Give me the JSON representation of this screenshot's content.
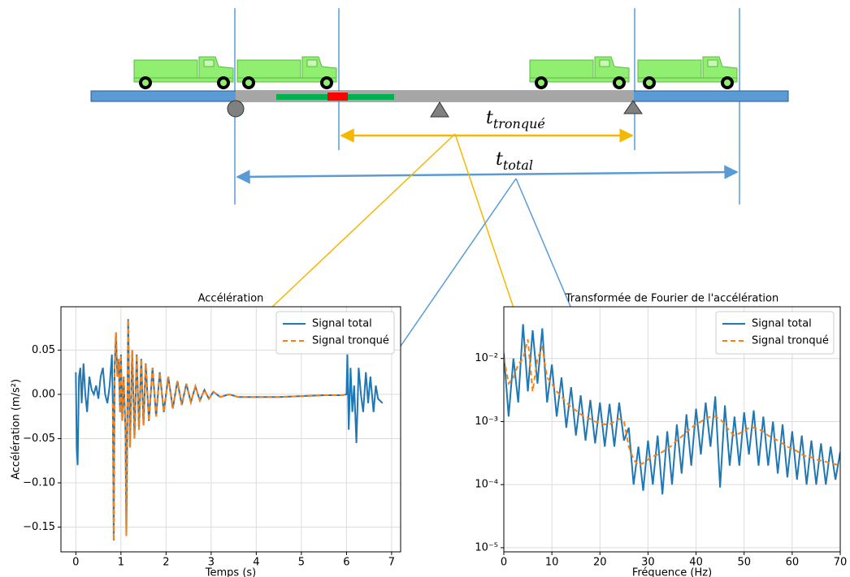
{
  "diagram": {
    "labels": [
      {
        "base": "t",
        "subscript": "tronqué"
      },
      {
        "base": "t",
        "subscript": "total"
      }
    ]
  },
  "chart_data": [
    {
      "type": "line",
      "title": "Accélération",
      "x_label": "Temps (s)",
      "y_label": "Accélération (m/s²)",
      "xlim": [
        -0.33,
        7.2
      ],
      "xticks": [
        0,
        1,
        2,
        3,
        4,
        5,
        6,
        7
      ],
      "ylim": [
        -0.178,
        0.099
      ],
      "yticks": [
        {
          "value": -0.15,
          "label": "−0.15"
        },
        {
          "value": -0.1,
          "label": "−0.10"
        },
        {
          "value": -0.05,
          "label": "−0.05"
        },
        {
          "value": 0,
          "label": "0.00"
        },
        0.05
      ],
      "grid": true,
      "legend": "upper right",
      "log_y": false,
      "x": [
        0,
        0.02,
        0.04,
        0.07,
        0.1,
        0.13,
        0.17,
        0.21,
        0.25,
        0.3,
        0.35,
        0.4,
        0.45,
        0.5,
        0.55,
        0.6,
        0.65,
        0.7,
        0.75,
        0.8,
        0.82,
        0.84,
        0.86,
        0.89,
        0.92,
        0.95,
        0.98,
        1,
        1.03,
        1.06,
        1.1,
        1.12,
        1.16,
        1.2,
        1.25,
        1.3,
        1.35,
        1.4,
        1.45,
        1.5,
        1.55,
        1.62,
        1.7,
        1.78,
        1.86,
        1.95,
        2.05,
        2.15,
        2.25,
        2.35,
        2.45,
        2.55,
        2.65,
        2.75,
        2.85,
        2.95,
        3.05,
        3.2,
        3.4,
        3.6,
        3.8,
        4,
        4.5,
        5,
        5.5,
        5.9,
        6,
        6.02,
        6.05,
        6.09,
        6.13,
        6.17,
        6.22,
        6.27,
        6.32,
        6.37,
        6.43,
        6.48,
        6.53,
        6.6,
        6.65,
        6.7,
        6.8
      ],
      "series": [
        {
          "name": "Signal total",
          "color": "#1f77b4",
          "linestyle": "solid",
          "values": [
            0.025,
            -0.06,
            -0.08,
            0.02,
            0.03,
            -0.01,
            0.035,
            0,
            -0.02,
            0.02,
            0.005,
            0,
            0.01,
            -0.005,
            0.02,
            0.03,
            0,
            -0.01,
            0.01,
            0.045,
            -0.01,
            -0.165,
            0.03,
            0.07,
            0.02,
            0.04,
            -0.02,
            0.045,
            -0.03,
            0.02,
            -0.04,
            -0.16,
            0.085,
            -0.06,
            0.05,
            -0.05,
            0.045,
            -0.04,
            0.04,
            -0.035,
            0.035,
            -0.03,
            0.03,
            -0.025,
            0.025,
            -0.02,
            0.02,
            -0.016,
            0.015,
            -0.012,
            0.012,
            -0.009,
            0.009,
            -0.007,
            0.005,
            -0.005,
            0.003,
            -0.003,
            0,
            -0.003,
            -0.003,
            -0.003,
            -0.003,
            -0.002,
            -0.001,
            -0.001,
            0,
            0.045,
            -0.04,
            0.03,
            -0.02,
            0.01,
            -0.055,
            0.03,
            0,
            -0.02,
            0.025,
            -0.01,
            0.02,
            -0.02,
            0.01,
            -0.005,
            -0.01
          ]
        },
        {
          "name": "Signal tronqué",
          "color": "#ff7f0e",
          "linestyle": "dashed",
          "values": [
            null,
            null,
            null,
            null,
            null,
            null,
            null,
            null,
            null,
            null,
            null,
            null,
            null,
            null,
            null,
            null,
            null,
            null,
            null,
            null,
            -0.01,
            -0.165,
            0.03,
            0.07,
            0.02,
            0.04,
            -0.02,
            0.045,
            -0.03,
            0.02,
            -0.04,
            -0.16,
            0.085,
            -0.06,
            0.05,
            -0.05,
            0.045,
            -0.04,
            0.04,
            -0.035,
            0.035,
            -0.03,
            0.03,
            -0.025,
            0.025,
            -0.02,
            0.02,
            -0.016,
            0.015,
            -0.012,
            0.012,
            -0.009,
            0.009,
            -0.007,
            0.005,
            -0.005,
            0.003,
            -0.003,
            0,
            -0.003,
            -0.003,
            -0.003,
            -0.003,
            -0.002,
            -0.001,
            -0.001,
            0,
            null,
            null,
            null,
            null,
            null,
            null,
            null,
            null,
            null,
            null,
            null,
            null,
            null,
            null,
            null,
            null
          ]
        }
      ]
    },
    {
      "type": "line",
      "title": "Transformée de Fourier de l'accélération",
      "x_label": "Fréquence (Hz)",
      "xlim": [
        0,
        70
      ],
      "xticks": [
        0,
        10,
        20,
        30,
        40,
        50,
        60,
        70
      ],
      "ylim": [
        8.6e-06,
        0.066
      ],
      "yticks": [
        {
          "value": 1e-05,
          "label": "10⁻⁵"
        },
        {
          "value": 0.0001,
          "label": "10⁻⁴"
        },
        {
          "value": 0.001,
          "label": "10⁻³"
        },
        {
          "value": 0.01,
          "label": "10⁻²"
        }
      ],
      "grid": true,
      "legend": "upper right",
      "log_y": true,
      "x": [
        0,
        1,
        2,
        3,
        4,
        5,
        6,
        7,
        8,
        9,
        10,
        11,
        12,
        13,
        14,
        15,
        16,
        17,
        18,
        19,
        20,
        21,
        22,
        23,
        24,
        25,
        26,
        27,
        28,
        29,
        30,
        31,
        32,
        33,
        34,
        35,
        36,
        37,
        38,
        39,
        40,
        41,
        42,
        43,
        44,
        45,
        46,
        47,
        48,
        49,
        50,
        51,
        52,
        53,
        54,
        55,
        56,
        57,
        58,
        59,
        60,
        61,
        62,
        63,
        64,
        65,
        66,
        67,
        68,
        69,
        70
      ],
      "series": [
        {
          "name": "Signal total",
          "color": "#1f77b4",
          "linestyle": "solid",
          "values": [
            0.012,
            0.0012,
            0.01,
            0.002,
            0.035,
            0.003,
            0.028,
            0.004,
            0.03,
            0.002,
            0.008,
            0.0012,
            0.005,
            0.0008,
            0.0035,
            0.0006,
            0.0026,
            0.0005,
            0.0022,
            0.00045,
            0.002,
            0.0004,
            0.0019,
            0.0004,
            0.002,
            0.0005,
            0.0008,
            0.0001,
            0.0004,
            8e-05,
            0.0005,
            0.0001,
            0.0006,
            7e-05,
            0.0007,
            0.0001,
            0.0009,
            0.00015,
            0.0013,
            0.0002,
            0.0016,
            0.0003,
            0.002,
            0.0004,
            0.0025,
            9e-05,
            0.0018,
            0.0002,
            0.0012,
            0.0002,
            0.0014,
            0.0003,
            0.0015,
            0.0002,
            0.0012,
            0.0002,
            0.001,
            0.00015,
            0.0009,
            0.00013,
            0.0007,
            0.00012,
            0.0006,
            0.0001,
            0.0005,
            0.0001,
            0.00045,
            0.0001,
            0.0004,
            0.00012,
            0.00033
          ]
        },
        {
          "name": "Signal tronqué",
          "color": "#ff7f0e",
          "linestyle": "dashed",
          "values": [
            0.01,
            0.004,
            0.005,
            0.008,
            0.01,
            0.02,
            0.003,
            0.01,
            0.015,
            0.005,
            0.004,
            0.003,
            0.0025,
            0.002,
            0.0017,
            0.0015,
            0.0013,
            0.0012,
            0.0011,
            0.001,
            0.00095,
            0.0009,
            0.0009,
            0.001,
            0.0011,
            0.001,
            0.0004,
            0.00025,
            0.0002,
            0.00022,
            0.00025,
            0.00028,
            0.0003,
            0.00033,
            0.00037,
            0.00042,
            0.0005,
            0.00058,
            0.00068,
            0.0008,
            0.0009,
            0.001,
            0.0011,
            0.0012,
            0.0012,
            0.0011,
            0.0009,
            0.0007,
            0.0006,
            0.00065,
            0.0007,
            0.0008,
            0.0008,
            0.00075,
            0.0007,
            0.0006,
            0.00055,
            0.0005,
            0.00045,
            0.0004,
            0.00037,
            0.00034,
            0.0003,
            0.00028,
            0.00027,
            0.00025,
            0.00024,
            0.00023,
            0.00022,
            0.00021,
            0.0002
          ]
        }
      ]
    }
  ]
}
